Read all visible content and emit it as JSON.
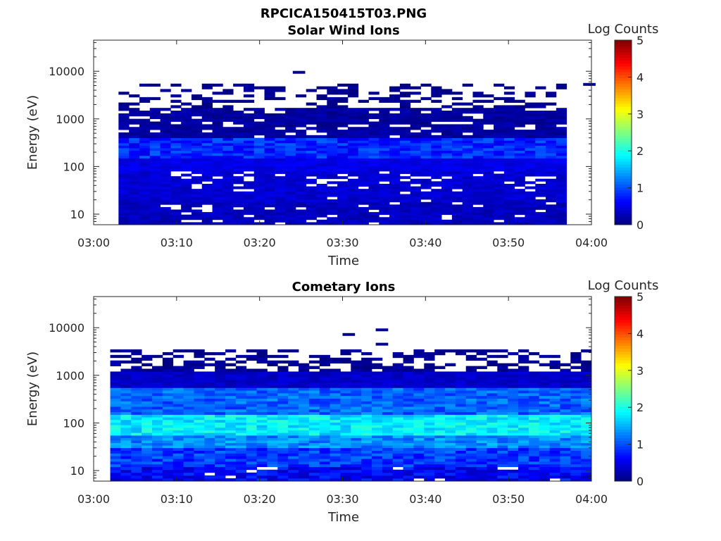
{
  "figure": {
    "title": "RPCICA150415T03.PNG"
  },
  "chart_data": [
    {
      "type": "heatmap",
      "title": "Solar Wind Ions",
      "xlabel": "Time",
      "ylabel": "Energy (eV)",
      "colorbar_label": "Log Counts",
      "colorbar_ticks": [
        "0",
        "1",
        "2",
        "3",
        "4",
        "5"
      ],
      "colormap": "jet",
      "clim": [
        0,
        5
      ],
      "xlim": [
        "03:00",
        "04:00"
      ],
      "x_tick_labels": [
        "03:00",
        "03:10",
        "03:20",
        "03:30",
        "03:40",
        "03:50",
        "04:00"
      ],
      "y_scale": "log",
      "ylim": [
        6,
        45000
      ],
      "y_tick_labels": [
        "10",
        "100",
        "1000",
        "10000"
      ],
      "data_time_range": [
        "03:03",
        "03:57"
      ],
      "energy_bands": [
        {
          "e_low": 6,
          "e_high": 18,
          "log_counts": 0.3,
          "coverage": 0.9
        },
        {
          "e_low": 18,
          "e_high": 30,
          "log_counts": 0.4,
          "coverage": 0.95
        },
        {
          "e_low": 30,
          "e_high": 80,
          "log_counts": 0.4,
          "coverage": 0.9
        },
        {
          "e_low": 80,
          "e_high": 150,
          "log_counts": 0.5,
          "coverage": 1.0
        },
        {
          "e_low": 150,
          "e_high": 400,
          "log_counts": 0.8,
          "coverage": 1.0
        },
        {
          "e_low": 400,
          "e_high": 1700,
          "log_counts": 0.15,
          "coverage": 0.85
        },
        {
          "e_low": 1700,
          "e_high": 5500,
          "log_counts": 0.05,
          "coverage": 0.35
        }
      ],
      "isolated_points": [
        {
          "time": "03:24",
          "energy": 9500,
          "log_counts": 0.05
        },
        {
          "time": "03:59",
          "energy": 5300,
          "log_counts": 0.05
        }
      ]
    },
    {
      "type": "heatmap",
      "title": "Cometary Ions",
      "xlabel": "Time",
      "ylabel": "Energy (eV)",
      "colorbar_label": "Log Counts",
      "colorbar_ticks": [
        "0",
        "1",
        "2",
        "3",
        "4",
        "5"
      ],
      "colormap": "jet",
      "clim": [
        0,
        5
      ],
      "xlim": [
        "03:00",
        "04:00"
      ],
      "x_tick_labels": [
        "03:00",
        "03:10",
        "03:20",
        "03:30",
        "03:40",
        "03:50",
        "04:00"
      ],
      "y_scale": "log",
      "ylim": [
        6,
        45000
      ],
      "y_tick_labels": [
        "10",
        "100",
        "1000",
        "10000"
      ],
      "data_time_range": [
        "03:02",
        "04:00"
      ],
      "energy_bands": [
        {
          "e_low": 6,
          "e_high": 12,
          "log_counts": 0.6,
          "coverage": 0.95
        },
        {
          "e_low": 12,
          "e_high": 30,
          "log_counts": 0.9,
          "coverage": 1.0
        },
        {
          "e_low": 30,
          "e_high": 55,
          "log_counts": 1.3,
          "coverage": 1.0
        },
        {
          "e_low": 55,
          "e_high": 150,
          "log_counts": 1.8,
          "coverage": 1.0
        },
        {
          "e_low": 150,
          "e_high": 550,
          "log_counts": 1.1,
          "coverage": 1.0
        },
        {
          "e_low": 550,
          "e_high": 1200,
          "log_counts": 0.35,
          "coverage": 1.0
        },
        {
          "e_low": 1200,
          "e_high": 3500,
          "log_counts": 0.1,
          "coverage": 0.5
        }
      ],
      "isolated_points": [
        {
          "time": "03:30",
          "energy": 7200,
          "log_counts": 0.1
        },
        {
          "time": "03:34",
          "energy": 9000,
          "log_counts": 0.1
        },
        {
          "time": "03:34",
          "energy": 4500,
          "log_counts": 0.1
        }
      ]
    }
  ]
}
